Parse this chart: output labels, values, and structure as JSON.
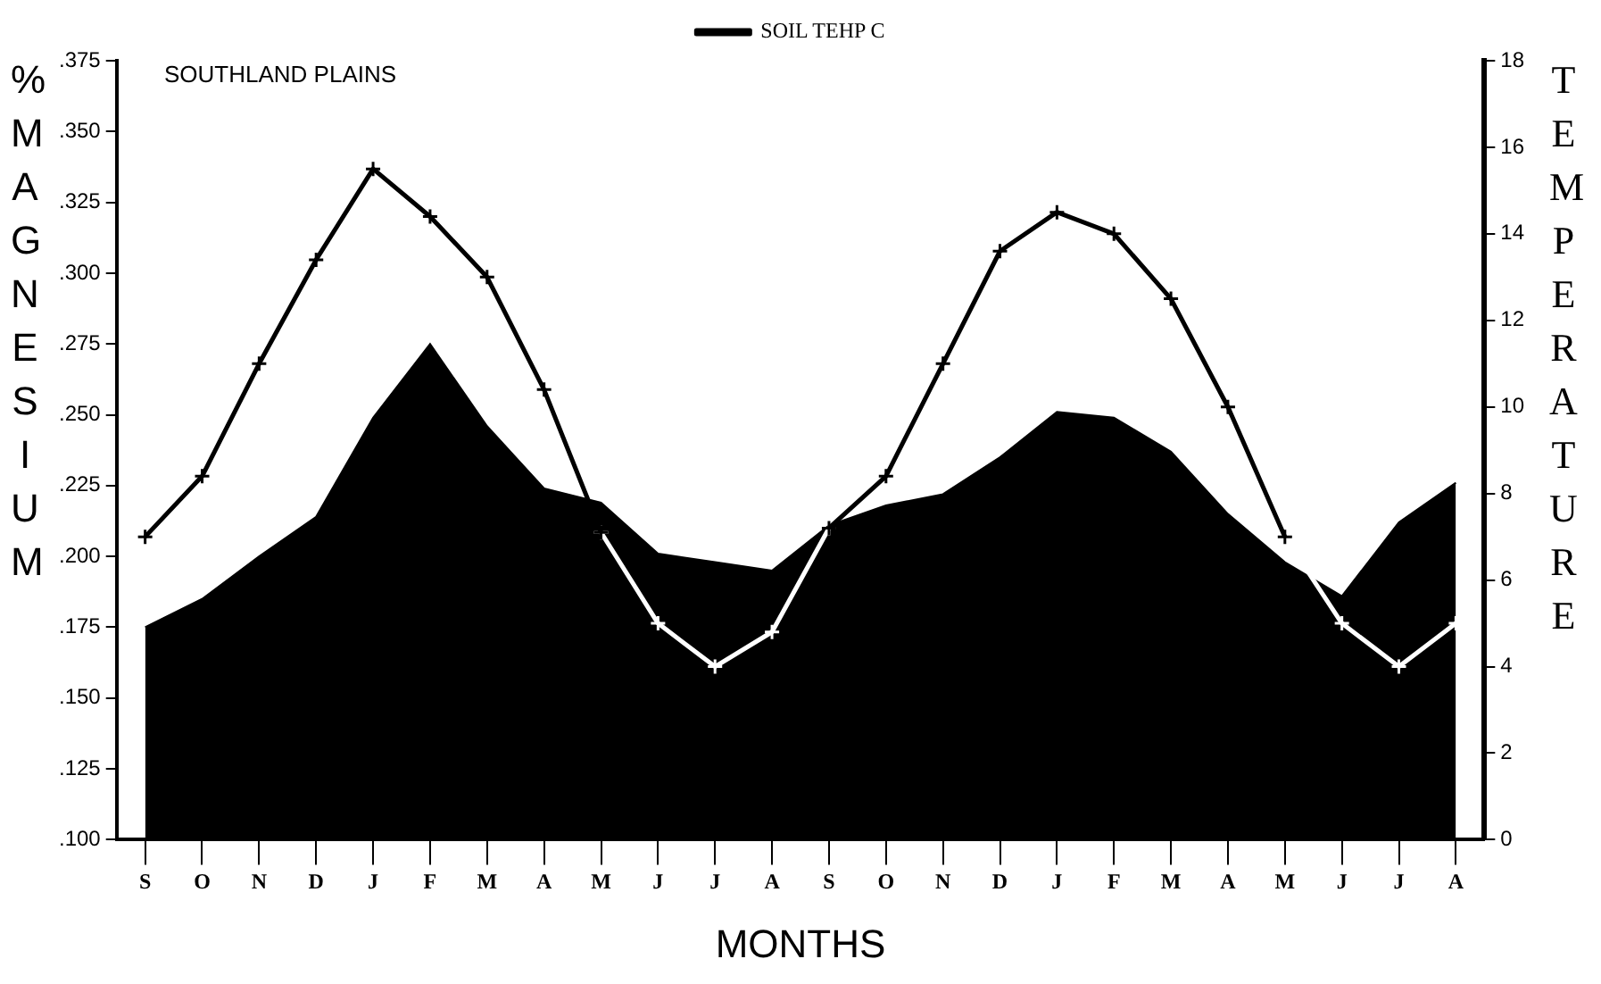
{
  "chart_data": {
    "type": "area",
    "categories": [
      "S",
      "O",
      "N",
      "D",
      "J",
      "F",
      "M",
      "A",
      "M",
      "J",
      "J",
      "A",
      "S",
      "O",
      "N",
      "D",
      "J",
      "F",
      "M",
      "A",
      "M",
      "J",
      "J",
      "A"
    ],
    "series": [
      {
        "color": "#000000",
        "values": [
          0.175,
          0.185,
          0.2,
          0.214,
          0.249,
          0.275,
          0.246,
          0.224,
          0.219,
          0.201,
          0.198,
          0.195,
          0.211,
          0.218,
          0.222,
          0.235,
          0.251,
          0.249,
          0.237,
          0.215,
          0.198,
          0.186,
          0.212,
          0.226
        ]
      },
      {
        "type": "line",
        "name": "SOIL TEHP C",
        "axis": "y2",
        "color": "#000000",
        "marker": "cross",
        "values": [
          7.0,
          8.4,
          11.0,
          13.4,
          15.5,
          14.4,
          13.0,
          10.4,
          7.1,
          null,
          null,
          null,
          7.2,
          8.4,
          11.0,
          13.6,
          14.5,
          14.0,
          12.5,
          10.0,
          7.0,
          null,
          null,
          null
        ]
      },
      {
        "type": "line",
        "axis": "y2",
        "color": "#ffffff",
        "marker": "cross",
        "values": [
          null,
          null,
          null,
          null,
          null,
          null,
          null,
          null,
          7.1,
          5.0,
          4.0,
          4.8,
          7.2,
          null,
          null,
          null,
          null,
          null,
          null,
          null,
          7.0,
          5.0,
          4.0,
          5.0
        ]
      }
    ],
    "ylim": [
      0.1,
      0.375
    ],
    "yticks": [
      {
        "value": 0.1,
        "label": ".100"
      },
      {
        "value": 0.125,
        "label": ".125"
      },
      {
        "value": 0.15,
        "label": ".150"
      },
      {
        "value": 0.175,
        "label": ".175"
      },
      {
        "value": 0.2,
        "label": ".200"
      },
      {
        "value": 0.225,
        "label": ".225"
      },
      {
        "value": 0.25,
        "label": ".250"
      },
      {
        "value": 0.275,
        "label": ".275"
      },
      {
        "value": 0.3,
        "label": ".300"
      },
      {
        "value": 0.325,
        "label": ".325"
      },
      {
        "value": 0.35,
        "label": ".350"
      },
      {
        "value": 0.375,
        "label": ".375"
      }
    ],
    "y2lim": [
      0,
      18
    ],
    "y2ticks": [
      0,
      2,
      4,
      6,
      8,
      10,
      12,
      14,
      16,
      18
    ],
    "xlabel": "MONTHS",
    "ylabel": "% MAGNESIUM",
    "y2label": "TEMPERATURE",
    "annotations": [
      "SOUTHLAND PLAINS"
    ],
    "legend": "top",
    "line_style": "solid"
  }
}
